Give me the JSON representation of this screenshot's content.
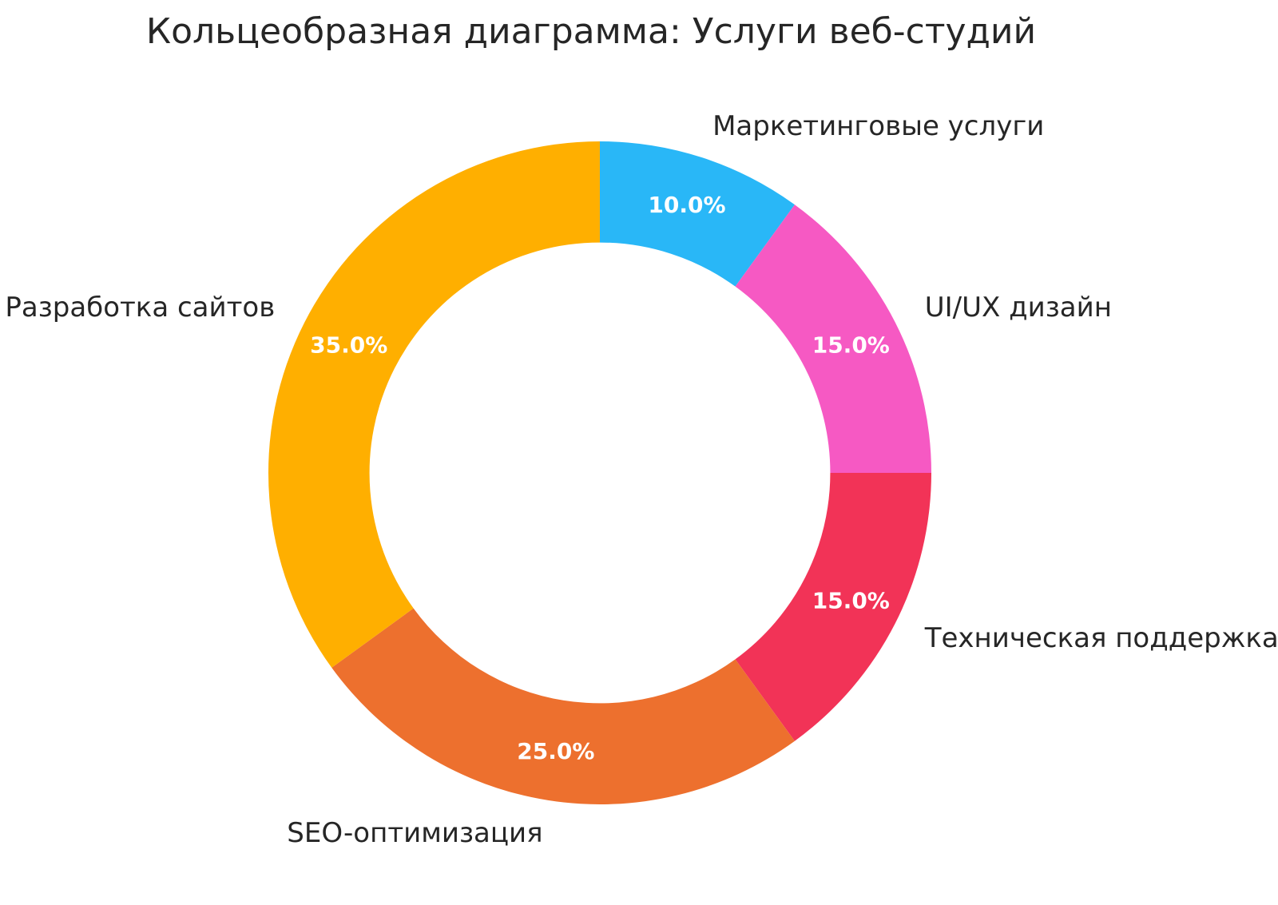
{
  "title": "Кольцеобразная диаграмма: Услуги веб-студий",
  "chart_data": {
    "type": "pie",
    "subtype": "donut",
    "title": "Кольцеобразная диаграмма: Услуги веб-студий",
    "categories": [
      "Маркетинговые услуги",
      "UI/UX дизайн",
      "Техническая поддержка",
      "SEO-оптимизация",
      "Разработка сайтов"
    ],
    "values": [
      10.0,
      15.0,
      15.0,
      25.0,
      35.0
    ],
    "pct_labels": [
      "10.0%",
      "15.0%",
      "15.0%",
      "25.0%",
      "35.0%"
    ],
    "colors": [
      "#29B7F7",
      "#F659C3",
      "#F23357",
      "#ED702E",
      "#FFAF00"
    ],
    "start_angle_deg": 0,
    "direction": "clockwise",
    "hole": 0.695,
    "legend": "none",
    "grid": "off",
    "label_color": "#262626",
    "pct_text_color": "#FFFFFF",
    "background_color": "#FFFFFF"
  }
}
